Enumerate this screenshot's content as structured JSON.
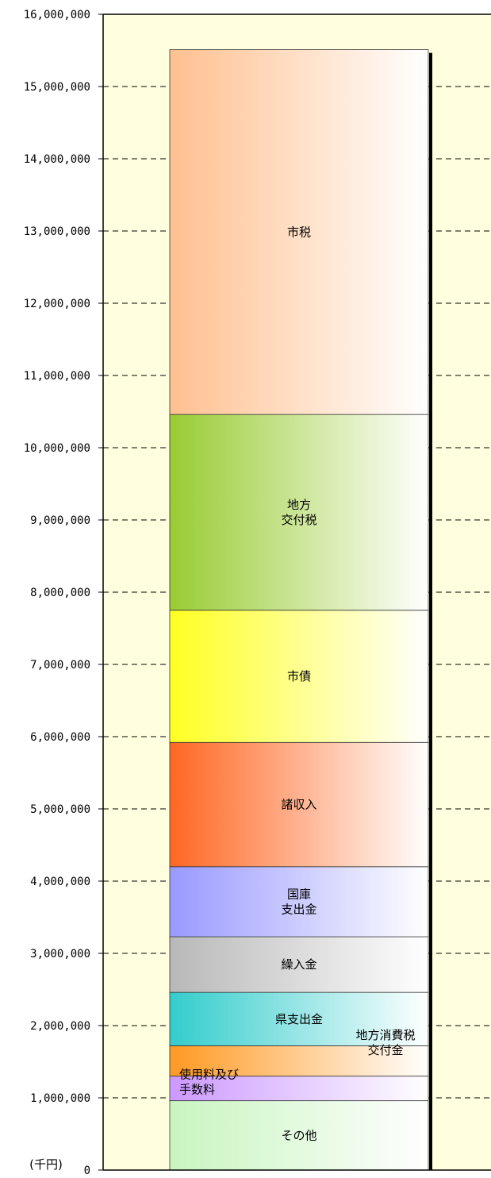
{
  "colors": {
    "plot_background": "#ffffe0",
    "grid": "#000000",
    "segment_edge": "#333333"
  },
  "chart_data": {
    "type": "bar",
    "stacked": true,
    "unit_label": "(千円)",
    "ylim": [
      0,
      16000000
    ],
    "y_ticks": [
      {
        "value": 0,
        "label": "0"
      },
      {
        "value": 1000000,
        "label": "1,000,000"
      },
      {
        "value": 2000000,
        "label": "2,000,000"
      },
      {
        "value": 3000000,
        "label": "3,000,000"
      },
      {
        "value": 4000000,
        "label": "4,000,000"
      },
      {
        "value": 5000000,
        "label": "5,000,000"
      },
      {
        "value": 6000000,
        "label": "6,000,000"
      },
      {
        "value": 7000000,
        "label": "7,000,000"
      },
      {
        "value": 8000000,
        "label": "8,000,000"
      },
      {
        "value": 9000000,
        "label": "9,000,000"
      },
      {
        "value": 10000000,
        "label": "10,000,000"
      },
      {
        "value": 11000000,
        "label": "11,000,000"
      },
      {
        "value": 12000000,
        "label": "12,000,000"
      },
      {
        "value": 13000000,
        "label": "13,000,000"
      },
      {
        "value": 14000000,
        "label": "14,000,000"
      },
      {
        "value": 15000000,
        "label": "15,000,000"
      },
      {
        "value": 16000000,
        "label": "16,000,000"
      }
    ],
    "grid": "dashed horizontal",
    "series": [
      {
        "name": "その他",
        "label_lines": [
          "その他"
        ],
        "value": 960000,
        "color": "#c8f5c0",
        "label_pos": "center"
      },
      {
        "name": "使用料及び手数料",
        "label_lines": [
          "使用料及び",
          "手数料"
        ],
        "value": 340000,
        "color": "#cc99ff",
        "label_pos": "left"
      },
      {
        "name": "地方消費税交付金",
        "label_lines": [
          "地方消費税",
          "交付金"
        ],
        "value": 420000,
        "color": "#ff9922",
        "label_pos": "right"
      },
      {
        "name": "県支出金",
        "label_lines": [
          "県支出金"
        ],
        "value": 740000,
        "color": "#33cccc",
        "label_pos": "center"
      },
      {
        "name": "繰入金",
        "label_lines": [
          "繰入金"
        ],
        "value": 770000,
        "color": "#b8b8b8",
        "label_pos": "center"
      },
      {
        "name": "国庫支出金",
        "label_lines": [
          "国庫",
          "支出金"
        ],
        "value": 970000,
        "color": "#9999ff",
        "label_pos": "center"
      },
      {
        "name": "諸収入",
        "label_lines": [
          "諸収入"
        ],
        "value": 1720000,
        "color": "#ff6622",
        "label_pos": "center"
      },
      {
        "name": "市債",
        "label_lines": [
          "市債"
        ],
        "value": 1830000,
        "color": "#ffff22",
        "label_pos": "center"
      },
      {
        "name": "地方交付税",
        "label_lines": [
          "地方",
          "交付税"
        ],
        "value": 2710000,
        "color": "#99cc33",
        "label_pos": "center"
      },
      {
        "name": "市税",
        "label_lines": [
          "市税"
        ],
        "value": 5050000,
        "color": "#ffc090",
        "label_pos": "center"
      }
    ]
  }
}
